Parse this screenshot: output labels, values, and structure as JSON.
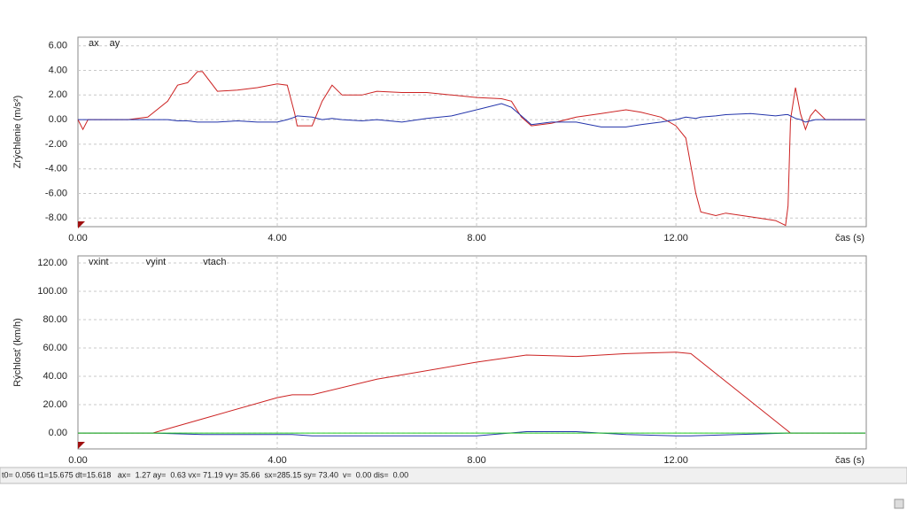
{
  "chart_data": [
    {
      "type": "line",
      "ylabel": "Zrýchlenie (m/s²)",
      "xlabel": "čas (s)",
      "x": [
        0,
        0.1,
        0.2,
        1.0,
        1.4,
        1.8,
        2.0,
        2.2,
        2.4,
        2.5,
        2.8,
        3.2,
        3.6,
        4.0,
        4.2,
        4.35,
        4.4,
        4.7,
        4.9,
        5.1,
        5.3,
        5.7,
        6.0,
        6.5,
        7.0,
        7.5,
        8.0,
        8.5,
        8.7,
        8.9,
        9.1,
        9.5,
        10.0,
        10.5,
        11.0,
        11.3,
        11.7,
        12.0,
        12.2,
        12.4,
        12.5,
        12.8,
        13.0,
        13.5,
        14.0,
        14.2,
        14.25,
        14.3,
        14.4,
        14.5,
        14.6,
        14.7,
        14.8,
        15.0,
        15.8
      ],
      "series": [
        {
          "name": "ax",
          "color": "#cc2222",
          "values": [
            0,
            -0.8,
            0,
            0,
            0.2,
            1.5,
            2.8,
            3.0,
            3.9,
            3.9,
            2.3,
            2.4,
            2.6,
            2.9,
            2.8,
            0.5,
            -0.5,
            -0.5,
            1.5,
            2.8,
            2.0,
            2.0,
            2.3,
            2.2,
            2.2,
            2.0,
            1.8,
            1.7,
            1.5,
            0.2,
            -0.5,
            -0.3,
            0.2,
            0.5,
            0.8,
            0.6,
            0.2,
            -0.5,
            -1.5,
            -6.0,
            -7.5,
            -7.8,
            -7.6,
            -7.9,
            -8.2,
            -8.6,
            -7.0,
            0,
            2.6,
            0.5,
            -0.8,
            0.3,
            0.8,
            0,
            0
          ]
        },
        {
          "name": "ay",
          "color": "#2233aa",
          "values": [
            0,
            0,
            0,
            0,
            0,
            0,
            -0.1,
            -0.1,
            -0.2,
            -0.2,
            -0.2,
            -0.1,
            -0.2,
            -0.2,
            0,
            0.2,
            0.3,
            0.2,
            0,
            0.1,
            0,
            -0.1,
            0,
            -0.2,
            0.1,
            0.3,
            0.8,
            1.3,
            1.0,
            0.3,
            -0.4,
            -0.2,
            -0.2,
            -0.6,
            -0.6,
            -0.4,
            -0.2,
            0,
            0.2,
            0.1,
            0.2,
            0.3,
            0.4,
            0.5,
            0.3,
            0.4,
            0.4,
            0.3,
            0.1,
            0,
            -0.2,
            -0.1,
            0,
            0,
            0
          ]
        }
      ],
      "xlim": [
        0,
        15.82
      ],
      "ylim": [
        -8.7,
        6.7
      ],
      "xticks": [
        {
          "value": 0,
          "label": "0.00"
        },
        {
          "value": 4,
          "label": "4.00"
        },
        {
          "value": 8,
          "label": "8.00"
        },
        {
          "value": 12,
          "label": "12.00"
        }
      ],
      "yticks": [
        {
          "value": -8,
          "label": "-8.00"
        },
        {
          "value": -6,
          "label": "-6.00"
        },
        {
          "value": -4,
          "label": "-4.00"
        },
        {
          "value": -2,
          "label": "-2.00"
        },
        {
          "value": 0,
          "label": "0.00"
        },
        {
          "value": 2,
          "label": "2.00"
        },
        {
          "value": 4,
          "label": "4.00"
        },
        {
          "value": 6,
          "label": "6.00"
        }
      ],
      "grid": true
    },
    {
      "type": "line",
      "ylabel": "Rýchlosť (km/h)",
      "xlabel": "čas (s)",
      "x": [
        0,
        1.5,
        2.5,
        4.0,
        4.3,
        4.7,
        6,
        8,
        9,
        10,
        11,
        12,
        12.3,
        14.3,
        14.6,
        15.8
      ],
      "series": [
        {
          "name": "vxint",
          "color": "#cc2222",
          "values": [
            0,
            0,
            10,
            25,
            27,
            27,
            38,
            50,
            55,
            54,
            56,
            57,
            56,
            0,
            0,
            0
          ]
        },
        {
          "name": "vyint",
          "color": "#2233aa",
          "values": [
            0,
            0,
            -1,
            -1,
            -1,
            -2,
            -2,
            -2,
            1,
            1,
            -1,
            -2,
            -2,
            0,
            0,
            0
          ]
        },
        {
          "name": "vtach",
          "color": "#22cc22",
          "values": [
            0,
            0,
            0,
            0,
            0,
            0,
            0,
            0,
            0,
            0,
            0,
            0,
            0,
            0,
            0,
            0
          ]
        }
      ],
      "xlim": [
        0,
        15.82
      ],
      "ylim": [
        -11.2,
        125
      ],
      "xticks": [
        {
          "value": 0,
          "label": "0.00"
        },
        {
          "value": 4,
          "label": "4.00"
        },
        {
          "value": 8,
          "label": "8.00"
        },
        {
          "value": 12,
          "label": "12.00"
        }
      ],
      "yticks": [
        {
          "value": 0,
          "label": "0.00"
        },
        {
          "value": 20,
          "label": "20.00"
        },
        {
          "value": 40,
          "label": "40.00"
        },
        {
          "value": 60,
          "label": "60.00"
        },
        {
          "value": 80,
          "label": "80.00"
        },
        {
          "value": 100,
          "label": "100.00"
        },
        {
          "value": 120,
          "label": "120.00"
        }
      ],
      "grid": true
    }
  ],
  "status_bar": "t0= 0.056 t1=15.675 dt=15.618   ax=  1.27 ay=  0.63 vx= 71.19 vy= 35.66  sx=285.15 sy= 73.40  v=  0.00 dis=  0.00"
}
